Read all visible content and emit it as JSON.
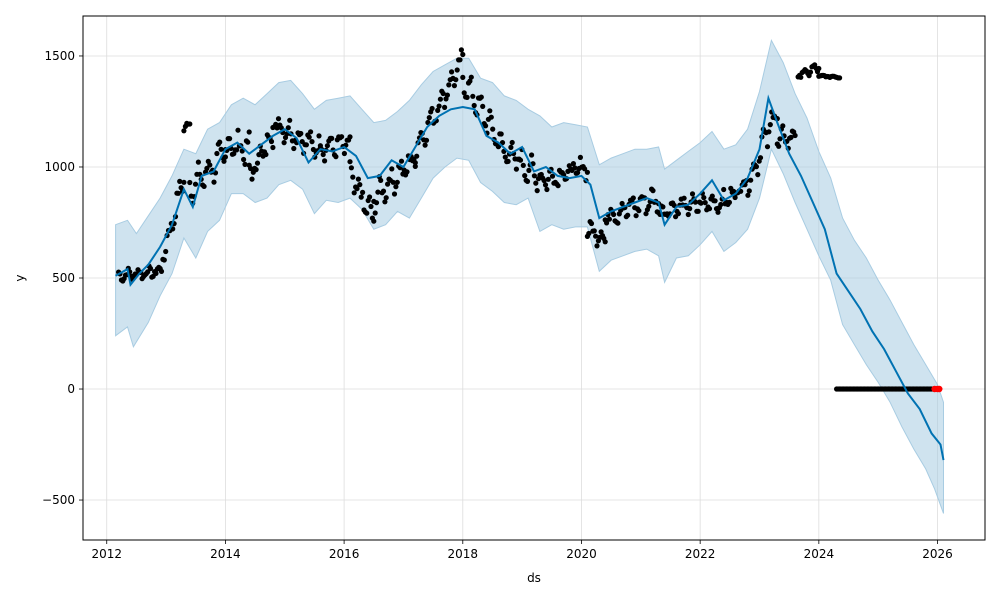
{
  "chart_data": {
    "type": "line",
    "xlabel": "ds",
    "ylabel": "y",
    "xlim": [
      2011.6,
      2026.8
    ],
    "ylim": [
      -680,
      1680
    ],
    "grid": true,
    "x_ticks": [
      {
        "value": 2012,
        "label": "2012"
      },
      {
        "value": 2014,
        "label": "2014"
      },
      {
        "value": 2016,
        "label": "2016"
      },
      {
        "value": 2018,
        "label": "2018"
      },
      {
        "value": 2020,
        "label": "2020"
      },
      {
        "value": 2022,
        "label": "2022"
      },
      {
        "value": 2024,
        "label": "2024"
      },
      {
        "value": 2026,
        "label": "2026"
      }
    ],
    "y_ticks": [
      {
        "value": -500,
        "label": "−500"
      },
      {
        "value": 0,
        "label": "0"
      },
      {
        "value": 500,
        "label": "500"
      },
      {
        "value": 1000,
        "label": "1000"
      },
      {
        "value": 1500,
        "label": "1500"
      }
    ],
    "colors": {
      "forecast": "#0072B2",
      "uncertainty": "#A8CCE2",
      "observed": "#000000",
      "highlight": "#FF0000",
      "grid": "#DDDDDD"
    },
    "series": [
      {
        "kind": "forecast",
        "points": [
          [
            2012.15,
            510
          ],
          [
            2012.35,
            540
          ],
          [
            2012.4,
            470
          ],
          [
            2012.55,
            520
          ],
          [
            2012.7,
            560
          ],
          [
            2012.9,
            640
          ],
          [
            2013.1,
            740
          ],
          [
            2013.3,
            900
          ],
          [
            2013.45,
            820
          ],
          [
            2013.6,
            960
          ],
          [
            2013.8,
            980
          ],
          [
            2014.0,
            1080
          ],
          [
            2014.2,
            1110
          ],
          [
            2014.4,
            1060
          ],
          [
            2014.6,
            1100
          ],
          [
            2014.8,
            1140
          ],
          [
            2015.0,
            1170
          ],
          [
            2015.2,
            1130
          ],
          [
            2015.4,
            1020
          ],
          [
            2015.6,
            1080
          ],
          [
            2015.8,
            1070
          ],
          [
            2016.0,
            1090
          ],
          [
            2016.2,
            1050
          ],
          [
            2016.4,
            950
          ],
          [
            2016.6,
            960
          ],
          [
            2016.8,
            1030
          ],
          [
            2017.0,
            1000
          ],
          [
            2017.2,
            1090
          ],
          [
            2017.4,
            1180
          ],
          [
            2017.6,
            1230
          ],
          [
            2017.8,
            1260
          ],
          [
            2018.0,
            1270
          ],
          [
            2018.2,
            1260
          ],
          [
            2018.4,
            1140
          ],
          [
            2018.6,
            1110
          ],
          [
            2018.8,
            1060
          ],
          [
            2019.0,
            1090
          ],
          [
            2019.2,
            980
          ],
          [
            2019.4,
            1000
          ],
          [
            2019.6,
            960
          ],
          [
            2019.8,
            950
          ],
          [
            2020.0,
            960
          ],
          [
            2020.15,
            920
          ],
          [
            2020.3,
            770
          ],
          [
            2020.5,
            800
          ],
          [
            2020.7,
            820
          ],
          [
            2020.9,
            840
          ],
          [
            2021.1,
            860
          ],
          [
            2021.3,
            840
          ],
          [
            2021.4,
            740
          ],
          [
            2021.6,
            820
          ],
          [
            2021.8,
            830
          ],
          [
            2022.0,
            880
          ],
          [
            2022.2,
            940
          ],
          [
            2022.4,
            850
          ],
          [
            2022.6,
            880
          ],
          [
            2022.8,
            950
          ],
          [
            2023.0,
            1080
          ],
          [
            2023.15,
            1310
          ],
          [
            2023.3,
            1200
          ],
          [
            2023.5,
            1060
          ],
          [
            2023.7,
            960
          ],
          [
            2023.9,
            840
          ],
          [
            2024.1,
            720
          ],
          [
            2024.3,
            520
          ],
          [
            2024.5,
            440
          ],
          [
            2024.7,
            360
          ],
          [
            2024.9,
            260
          ],
          [
            2025.1,
            180
          ],
          [
            2025.3,
            80
          ],
          [
            2025.5,
            -20
          ],
          [
            2025.7,
            -90
          ],
          [
            2025.9,
            -200
          ],
          [
            2026.05,
            -250
          ],
          [
            2026.1,
            -320
          ]
        ]
      },
      {
        "kind": "uncertainty_upper",
        "points": [
          [
            2012.15,
            740
          ],
          [
            2012.35,
            760
          ],
          [
            2012.5,
            700
          ],
          [
            2012.7,
            780
          ],
          [
            2012.9,
            860
          ],
          [
            2013.1,
            960
          ],
          [
            2013.3,
            1080
          ],
          [
            2013.5,
            1060
          ],
          [
            2013.7,
            1170
          ],
          [
            2013.9,
            1200
          ],
          [
            2014.1,
            1280
          ],
          [
            2014.3,
            1310
          ],
          [
            2014.5,
            1280
          ],
          [
            2014.7,
            1330
          ],
          [
            2014.9,
            1380
          ],
          [
            2015.1,
            1390
          ],
          [
            2015.3,
            1330
          ],
          [
            2015.5,
            1260
          ],
          [
            2015.7,
            1300
          ],
          [
            2015.9,
            1310
          ],
          [
            2016.1,
            1320
          ],
          [
            2016.3,
            1260
          ],
          [
            2016.5,
            1200
          ],
          [
            2016.7,
            1210
          ],
          [
            2016.9,
            1250
          ],
          [
            2017.1,
            1300
          ],
          [
            2017.3,
            1370
          ],
          [
            2017.5,
            1430
          ],
          [
            2017.7,
            1460
          ],
          [
            2017.9,
            1490
          ],
          [
            2018.1,
            1490
          ],
          [
            2018.3,
            1400
          ],
          [
            2018.5,
            1380
          ],
          [
            2018.7,
            1320
          ],
          [
            2018.9,
            1300
          ],
          [
            2019.1,
            1260
          ],
          [
            2019.3,
            1230
          ],
          [
            2019.5,
            1180
          ],
          [
            2019.7,
            1200
          ],
          [
            2019.9,
            1190
          ],
          [
            2020.1,
            1180
          ],
          [
            2020.3,
            1010
          ],
          [
            2020.5,
            1040
          ],
          [
            2020.7,
            1060
          ],
          [
            2020.9,
            1080
          ],
          [
            2021.1,
            1080
          ],
          [
            2021.3,
            1090
          ],
          [
            2021.4,
            990
          ],
          [
            2021.6,
            1030
          ],
          [
            2021.8,
            1070
          ],
          [
            2022.0,
            1110
          ],
          [
            2022.2,
            1160
          ],
          [
            2022.4,
            1080
          ],
          [
            2022.6,
            1100
          ],
          [
            2022.8,
            1170
          ],
          [
            2023.0,
            1340
          ],
          [
            2023.2,
            1570
          ],
          [
            2023.4,
            1470
          ],
          [
            2023.6,
            1330
          ],
          [
            2023.8,
            1220
          ],
          [
            2024.0,
            1070
          ],
          [
            2024.2,
            950
          ],
          [
            2024.4,
            770
          ],
          [
            2024.6,
            670
          ],
          [
            2024.8,
            590
          ],
          [
            2025.0,
            490
          ],
          [
            2025.2,
            400
          ],
          [
            2025.4,
            300
          ],
          [
            2025.6,
            200
          ],
          [
            2025.8,
            110
          ],
          [
            2026.0,
            20
          ],
          [
            2026.1,
            -60
          ]
        ]
      },
      {
        "kind": "uncertainty_lower",
        "points": [
          [
            2012.15,
            240
          ],
          [
            2012.35,
            280
          ],
          [
            2012.45,
            190
          ],
          [
            2012.7,
            300
          ],
          [
            2012.9,
            420
          ],
          [
            2013.1,
            520
          ],
          [
            2013.3,
            680
          ],
          [
            2013.5,
            590
          ],
          [
            2013.7,
            710
          ],
          [
            2013.9,
            760
          ],
          [
            2014.1,
            880
          ],
          [
            2014.3,
            880
          ],
          [
            2014.5,
            840
          ],
          [
            2014.7,
            860
          ],
          [
            2014.9,
            920
          ],
          [
            2015.1,
            940
          ],
          [
            2015.3,
            900
          ],
          [
            2015.5,
            790
          ],
          [
            2015.7,
            850
          ],
          [
            2015.9,
            840
          ],
          [
            2016.1,
            860
          ],
          [
            2016.3,
            810
          ],
          [
            2016.5,
            720
          ],
          [
            2016.7,
            740
          ],
          [
            2016.9,
            800
          ],
          [
            2017.1,
            770
          ],
          [
            2017.3,
            860
          ],
          [
            2017.5,
            950
          ],
          [
            2017.7,
            1000
          ],
          [
            2017.9,
            1040
          ],
          [
            2018.1,
            1030
          ],
          [
            2018.3,
            930
          ],
          [
            2018.5,
            890
          ],
          [
            2018.7,
            840
          ],
          [
            2018.9,
            830
          ],
          [
            2019.1,
            860
          ],
          [
            2019.3,
            710
          ],
          [
            2019.5,
            740
          ],
          [
            2019.7,
            720
          ],
          [
            2019.9,
            730
          ],
          [
            2020.1,
            730
          ],
          [
            2020.3,
            530
          ],
          [
            2020.5,
            580
          ],
          [
            2020.7,
            600
          ],
          [
            2020.9,
            620
          ],
          [
            2021.1,
            630
          ],
          [
            2021.3,
            600
          ],
          [
            2021.4,
            480
          ],
          [
            2021.6,
            590
          ],
          [
            2021.8,
            600
          ],
          [
            2022.0,
            650
          ],
          [
            2022.2,
            710
          ],
          [
            2022.4,
            620
          ],
          [
            2022.6,
            660
          ],
          [
            2022.8,
            720
          ],
          [
            2023.0,
            860
          ],
          [
            2023.2,
            1080
          ],
          [
            2023.4,
            970
          ],
          [
            2023.6,
            840
          ],
          [
            2023.8,
            720
          ],
          [
            2024.0,
            600
          ],
          [
            2024.2,
            490
          ],
          [
            2024.4,
            290
          ],
          [
            2024.6,
            200
          ],
          [
            2024.8,
            110
          ],
          [
            2025.0,
            30
          ],
          [
            2025.2,
            -60
          ],
          [
            2025.4,
            -170
          ],
          [
            2025.6,
            -270
          ],
          [
            2025.8,
            -360
          ],
          [
            2025.95,
            -450
          ],
          [
            2026.1,
            -560
          ]
        ]
      },
      {
        "kind": "observed",
        "segments": [
          {
            "from": 2012.2,
            "to": 2012.9,
            "v0": 510,
            "v1": 530,
            "amp": 30,
            "rise": 0
          },
          {
            "from": 2012.9,
            "to": 2013.3,
            "v0": 540,
            "v1": 960,
            "amp": 60,
            "rise": 0
          },
          {
            "from": 2013.3,
            "to": 2013.4,
            "v0": 1180,
            "v1": 1190,
            "amp": 25,
            "rise": 0
          },
          {
            "from": 2013.4,
            "to": 2014.0,
            "v0": 900,
            "v1": 1060,
            "amp": 80,
            "rise": 0
          },
          {
            "from": 2014.0,
            "to": 2014.4,
            "v0": 1100,
            "v1": 1080,
            "amp": 80,
            "rise": 0
          },
          {
            "from": 2014.4,
            "to": 2014.8,
            "v0": 960,
            "v1": 1150,
            "amp": 70,
            "rise": 0
          },
          {
            "from": 2014.8,
            "to": 2015.6,
            "v0": 1200,
            "v1": 1080,
            "amp": 60,
            "rise": 0
          },
          {
            "from": 2015.6,
            "to": 2016.1,
            "v0": 1090,
            "v1": 1100,
            "amp": 60,
            "rise": 0
          },
          {
            "from": 2016.1,
            "to": 2016.5,
            "v0": 960,
            "v1": 760,
            "amp": 80,
            "rise": 0
          },
          {
            "from": 2016.5,
            "to": 2017.2,
            "v0": 860,
            "v1": 1040,
            "amp": 70,
            "rise": 0
          },
          {
            "from": 2017.2,
            "to": 2018.0,
            "v0": 1080,
            "v1": 1480,
            "amp": 60,
            "rise": 0
          },
          {
            "from": 2018.0,
            "to": 2018.6,
            "v0": 1400,
            "v1": 1120,
            "amp": 70,
            "rise": 0
          },
          {
            "from": 2018.6,
            "to": 2019.3,
            "v0": 1100,
            "v1": 950,
            "amp": 70,
            "rise": 0
          },
          {
            "from": 2019.3,
            "to": 2020.1,
            "v0": 940,
            "v1": 1000,
            "amp": 60,
            "rise": 0
          },
          {
            "from": 2020.1,
            "to": 2020.4,
            "v0": 720,
            "v1": 680,
            "amp": 50,
            "rise": 0
          },
          {
            "from": 2020.4,
            "to": 2021.3,
            "v0": 780,
            "v1": 860,
            "amp": 60,
            "rise": 0
          },
          {
            "from": 2021.3,
            "to": 2022.3,
            "v0": 800,
            "v1": 850,
            "amp": 50,
            "rise": 0
          },
          {
            "from": 2022.3,
            "to": 2022.9,
            "v0": 820,
            "v1": 960,
            "amp": 60,
            "rise": 0
          },
          {
            "from": 2022.9,
            "to": 2023.3,
            "v0": 1000,
            "v1": 1260,
            "amp": 80,
            "rise": 0
          },
          {
            "from": 2023.3,
            "to": 2023.6,
            "v0": 1120,
            "v1": 1140,
            "amp": 60,
            "rise": 0
          },
          {
            "from": 2023.65,
            "to": 2024.0,
            "v0": 1410,
            "v1": 1450,
            "amp": 25,
            "rise": 0
          },
          {
            "from": 2024.0,
            "to": 2024.35,
            "v0": 1410,
            "v1": 1405,
            "amp": 5,
            "rise": 0
          },
          {
            "from": 2024.3,
            "to": 2025.95,
            "v0": 0,
            "v1": 0,
            "amp": 0,
            "rise": 0
          }
        ]
      },
      {
        "kind": "highlight",
        "points": [
          [
            2025.95,
            0
          ],
          [
            2026.0,
            0
          ],
          [
            2026.03,
            0
          ]
        ]
      }
    ]
  }
}
